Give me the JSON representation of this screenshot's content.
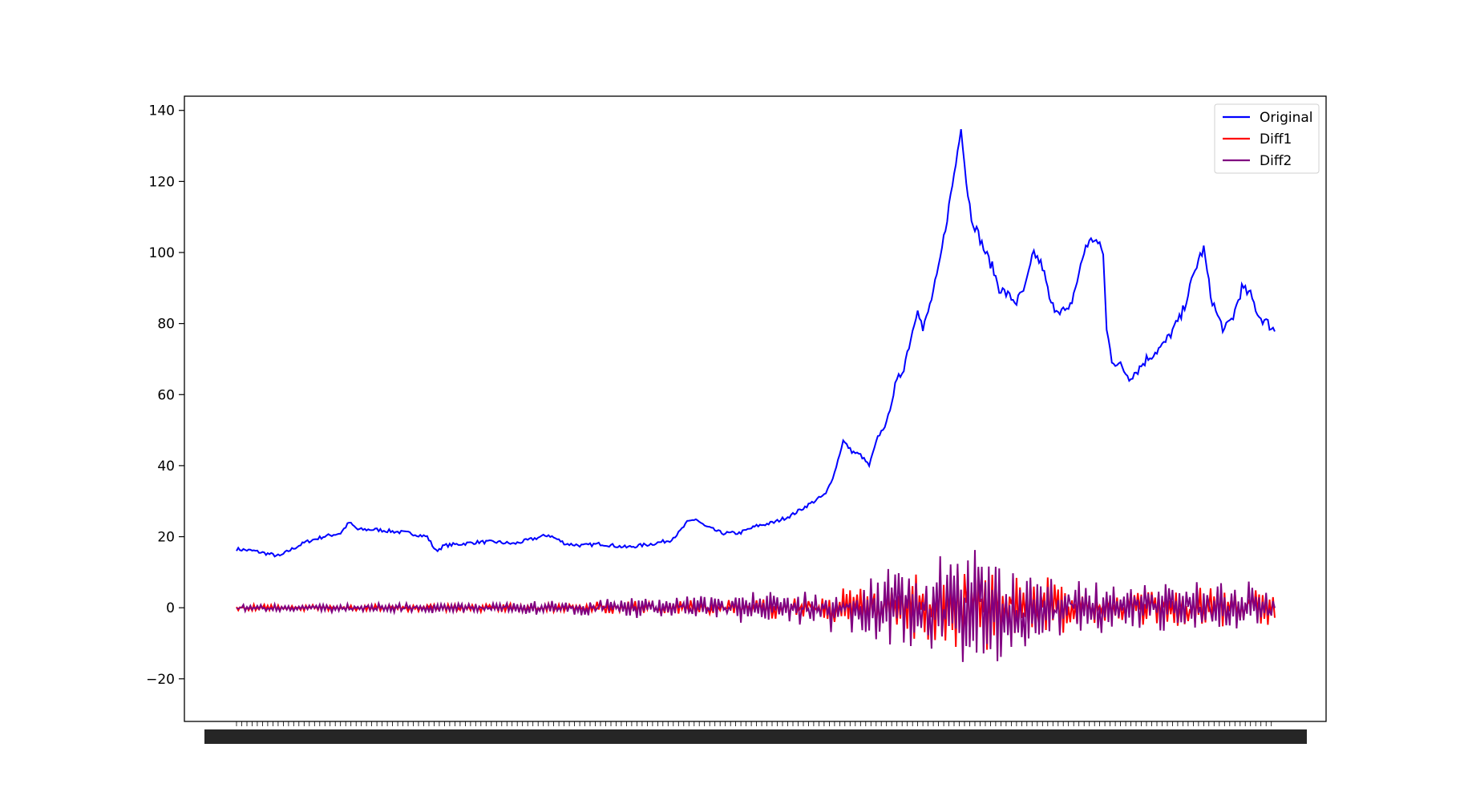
{
  "chart_data": {
    "type": "line",
    "title": "",
    "xlabel": "",
    "ylabel": "",
    "ylim": [
      -32,
      144
    ],
    "yticks": [
      -20,
      0,
      20,
      40,
      60,
      80,
      100,
      120,
      140
    ],
    "ytick_labels": [
      "−20",
      "0",
      "20",
      "40",
      "60",
      "80",
      "100",
      "120",
      "140"
    ],
    "x_tick_labels_note": "dense overlapping date labels (unreadable)",
    "n_points": 600,
    "grid": false,
    "legend_position": "upper right",
    "series": [
      {
        "name": "Original",
        "color": "#0000ff",
        "keypoints": [
          [
            0,
            16.5
          ],
          [
            10,
            16
          ],
          [
            20,
            15
          ],
          [
            25,
            14.5
          ],
          [
            30,
            16
          ],
          [
            40,
            18.5
          ],
          [
            50,
            20
          ],
          [
            60,
            21
          ],
          [
            65,
            24
          ],
          [
            70,
            22
          ],
          [
            80,
            22
          ],
          [
            90,
            21.5
          ],
          [
            100,
            21
          ],
          [
            105,
            20.5
          ],
          [
            110,
            20
          ],
          [
            115,
            16
          ],
          [
            120,
            17.5
          ],
          [
            140,
            18.5
          ],
          [
            150,
            18.5
          ],
          [
            160,
            18
          ],
          [
            180,
            20.5
          ],
          [
            190,
            18
          ],
          [
            200,
            17.5
          ],
          [
            210,
            18
          ],
          [
            225,
            17
          ],
          [
            240,
            18
          ],
          [
            250,
            19
          ],
          [
            255,
            21
          ],
          [
            260,
            24
          ],
          [
            265,
            25
          ],
          [
            270,
            23
          ],
          [
            280,
            21
          ],
          [
            290,
            21
          ],
          [
            300,
            23
          ],
          [
            310,
            24
          ],
          [
            320,
            26
          ],
          [
            330,
            29
          ],
          [
            340,
            32
          ],
          [
            345,
            38
          ],
          [
            350,
            47
          ],
          [
            355,
            44
          ],
          [
            360,
            43
          ],
          [
            365,
            40
          ],
          [
            370,
            48
          ],
          [
            375,
            52
          ],
          [
            380,
            62
          ],
          [
            385,
            68
          ],
          [
            390,
            78
          ],
          [
            393,
            85
          ],
          [
            396,
            78
          ],
          [
            400,
            85
          ],
          [
            405,
            95
          ],
          [
            410,
            110
          ],
          [
            415,
            125
          ],
          [
            418,
            136
          ],
          [
            421,
            120
          ],
          [
            424,
            110
          ],
          [
            428,
            105
          ],
          [
            432,
            100
          ],
          [
            436,
            96
          ],
          [
            440,
            90
          ],
          [
            445,
            88
          ],
          [
            450,
            86
          ],
          [
            455,
            90
          ],
          [
            460,
            100
          ],
          [
            465,
            96
          ],
          [
            470,
            85
          ],
          [
            475,
            84
          ],
          [
            480,
            83
          ],
          [
            485,
            92
          ],
          [
            490,
            102
          ],
          [
            495,
            104
          ],
          [
            500,
            100
          ],
          [
            502,
            78
          ],
          [
            505,
            70
          ],
          [
            510,
            68
          ],
          [
            515,
            65
          ],
          [
            520,
            67
          ],
          [
            525,
            70
          ],
          [
            530,
            72
          ],
          [
            535,
            74
          ],
          [
            540,
            78
          ],
          [
            545,
            82
          ],
          [
            550,
            90
          ],
          [
            555,
            98
          ],
          [
            558,
            101
          ],
          [
            562,
            88
          ],
          [
            566,
            82
          ],
          [
            570,
            78
          ],
          [
            575,
            82
          ],
          [
            580,
            90
          ],
          [
            585,
            88
          ],
          [
            590,
            82
          ],
          [
            595,
            80
          ],
          [
            599,
            78
          ]
        ]
      },
      {
        "name": "Diff1",
        "color": "#ff0000",
        "amplitudes": [
          [
            0,
            0.8
          ],
          [
            150,
            1.0
          ],
          [
            260,
            2.0
          ],
          [
            330,
            3.0
          ],
          [
            380,
            7.0
          ],
          [
            420,
            12.0
          ],
          [
            500,
            5.0
          ],
          [
            600,
            5.0
          ]
        ]
      },
      {
        "name": "Diff2",
        "color": "#800080",
        "amplitudes": [
          [
            0,
            1.0
          ],
          [
            150,
            1.4
          ],
          [
            260,
            3.0
          ],
          [
            330,
            4.5
          ],
          [
            380,
            10.0
          ],
          [
            420,
            16.0
          ],
          [
            500,
            6.5
          ],
          [
            600,
            6.5
          ]
        ]
      }
    ],
    "annotations": []
  }
}
